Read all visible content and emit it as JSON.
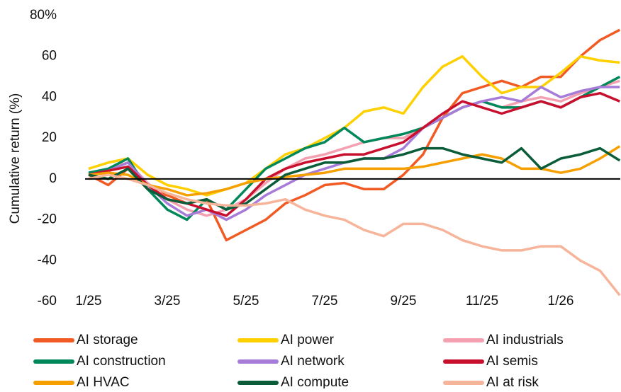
{
  "chart_data": {
    "type": "line",
    "y_label": "Cumulative return (%)",
    "categories": [
      "1/25",
      null,
      null,
      null,
      "3/25",
      null,
      null,
      null,
      "5/25",
      null,
      null,
      null,
      "7/25",
      null,
      null,
      null,
      "9/25",
      null,
      null,
      null,
      "11/25",
      null,
      null,
      null,
      "1/26",
      null,
      null,
      null
    ],
    "ylim": [
      -60,
      80
    ],
    "yticks": [
      {
        "value": 80,
        "label": "80%"
      },
      60,
      40,
      20,
      0,
      -20,
      -40,
      -60
    ],
    "series": [
      {
        "name": "AI storage",
        "color": "#f15a22",
        "values": [
          2,
          -3,
          5,
          -5,
          -8,
          -12,
          -10,
          -30,
          -25,
          -20,
          -12,
          -8,
          -3,
          -2,
          -5,
          -5,
          2,
          12,
          30,
          42,
          45,
          48,
          45,
          50,
          50,
          60,
          68,
          73
        ]
      },
      {
        "name": "AI power",
        "color": "#ffd000",
        "values": [
          5,
          8,
          10,
          2,
          -3,
          -5,
          -8,
          -5,
          -2,
          5,
          12,
          15,
          20,
          25,
          33,
          35,
          32,
          45,
          55,
          60,
          50,
          42,
          45,
          45,
          52,
          60,
          58,
          57
        ]
      },
      {
        "name": "AI industrials",
        "color": "#f4a0b0",
        "values": [
          3,
          5,
          8,
          -2,
          -10,
          -15,
          -18,
          -15,
          -10,
          -2,
          5,
          10,
          12,
          15,
          18,
          20,
          20,
          25,
          30,
          35,
          38,
          35,
          38,
          40,
          38,
          42,
          45,
          48
        ]
      },
      {
        "name": "AI construction",
        "color": "#00875a",
        "values": [
          3,
          5,
          10,
          -5,
          -15,
          -20,
          -10,
          -15,
          -5,
          5,
          10,
          15,
          18,
          25,
          18,
          20,
          22,
          25,
          30,
          35,
          38,
          35,
          35,
          38,
          35,
          40,
          45,
          50
        ]
      },
      {
        "name": "AI network",
        "color": "#a77bd8",
        "values": [
          2,
          4,
          8,
          -3,
          -12,
          -18,
          -15,
          -20,
          -15,
          -8,
          -3,
          2,
          5,
          8,
          10,
          10,
          15,
          25,
          30,
          35,
          38,
          40,
          38,
          45,
          40,
          43,
          45,
          45
        ]
      },
      {
        "name": "AI semis",
        "color": "#c8102e",
        "values": [
          2,
          4,
          6,
          -3,
          -10,
          -12,
          -15,
          -18,
          -10,
          0,
          5,
          8,
          10,
          12,
          12,
          15,
          18,
          25,
          32,
          38,
          35,
          32,
          35,
          38,
          35,
          40,
          42,
          38
        ]
      },
      {
        "name": "AI HVAC",
        "color": "#f5a000",
        "values": [
          2,
          3,
          2,
          -3,
          -5,
          -8,
          -7,
          -5,
          -2,
          0,
          1,
          2,
          3,
          5,
          5,
          5,
          5,
          6,
          8,
          10,
          12,
          10,
          5,
          5,
          3,
          5,
          10,
          16
        ]
      },
      {
        "name": "AI compute",
        "color": "#0b5d3a",
        "values": [
          2,
          0,
          5,
          -5,
          -10,
          -12,
          -10,
          -15,
          -12,
          -5,
          2,
          5,
          8,
          8,
          10,
          10,
          12,
          15,
          15,
          12,
          10,
          8,
          15,
          5,
          10,
          12,
          15,
          9
        ]
      },
      {
        "name": "AI at risk",
        "color": "#f6b59a",
        "values": [
          0,
          2,
          0,
          -3,
          -7,
          -10,
          -12,
          -13,
          -13,
          -12,
          -10,
          -15,
          -18,
          -20,
          -25,
          -28,
          -22,
          -22,
          -25,
          -30,
          -33,
          -35,
          -35,
          -33,
          -33,
          -40,
          -45,
          -57
        ]
      }
    ],
    "zero_line": true
  }
}
